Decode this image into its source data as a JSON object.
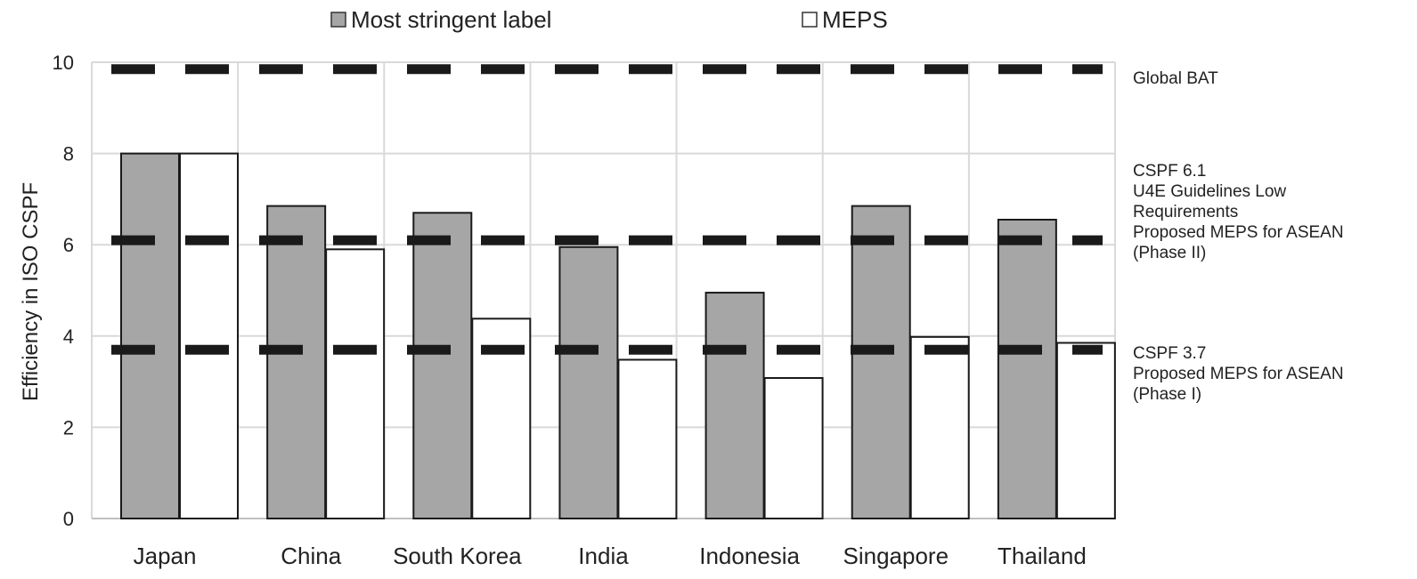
{
  "chart_data": {
    "type": "bar",
    "categories": [
      "Japan",
      "China",
      "South Korea",
      "India",
      "Indonesia",
      "Singapore",
      "Thailand"
    ],
    "series": [
      {
        "name": "Most stringent label",
        "values": [
          8.0,
          6.85,
          6.7,
          5.95,
          4.95,
          6.85,
          6.55
        ],
        "color": "#a6a6a6"
      },
      {
        "name": "MEPS",
        "values": [
          8.0,
          5.9,
          4.38,
          3.48,
          3.08,
          3.98,
          3.85
        ],
        "color": "#ffffff"
      }
    ],
    "ylabel": "Efficiency in ISO CSPF",
    "ylim": [
      0,
      10
    ],
    "yticks": [
      0,
      2,
      4,
      6,
      8,
      10
    ],
    "grid": true,
    "legend_position": "top",
    "reference_lines": [
      {
        "value": 9.85,
        "label_lines": [
          "Global BAT"
        ]
      },
      {
        "value": 6.1,
        "label_lines": [
          "CSPF 6.1",
          "U4E Guidelines Low",
          "Requirements",
          "Proposed MEPS for ASEAN",
          "(Phase II)"
        ]
      },
      {
        "value": 3.7,
        "label_lines": [
          "CSPF 3.7",
          "Proposed MEPS for ASEAN",
          "(Phase I)"
        ]
      }
    ],
    "colors": {
      "gridline": "#d9d9d9",
      "axis": "#bfbfbf",
      "bar_outline": "#1a1a1a",
      "reference_line": "#1a1a1a"
    }
  }
}
